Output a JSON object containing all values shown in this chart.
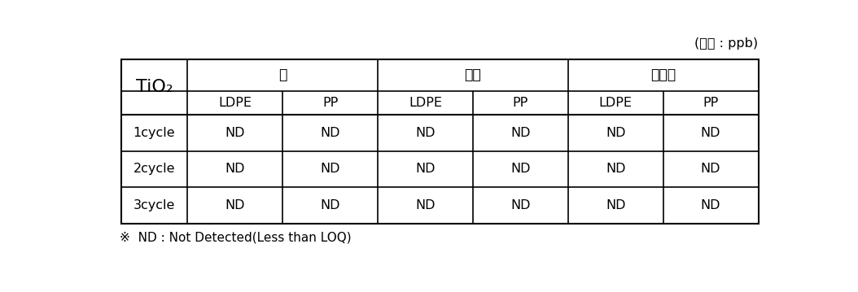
{
  "unit_label": "(단위 : ppb)",
  "row_header_label": "TiO₂",
  "col_group_headers": [
    "물",
    "초산",
    "에탄올"
  ],
  "col_sub_headers": [
    "LDPE",
    "PP",
    "LDPE",
    "PP",
    "LDPE",
    "PP"
  ],
  "row_labels": [
    "1cycle",
    "2cycle",
    "3cycle"
  ],
  "cell_values": [
    [
      "ND",
      "ND",
      "ND",
      "ND",
      "ND",
      "ND"
    ],
    [
      "ND",
      "ND",
      "ND",
      "ND",
      "ND",
      "ND"
    ],
    [
      "ND",
      "ND",
      "ND",
      "ND",
      "ND",
      "ND"
    ]
  ],
  "footnote": "※  ND : Not Detected(Less than LOQ)",
  "font_size": 11.5,
  "header_font_size": 12.5,
  "tio2_font_size": 16
}
